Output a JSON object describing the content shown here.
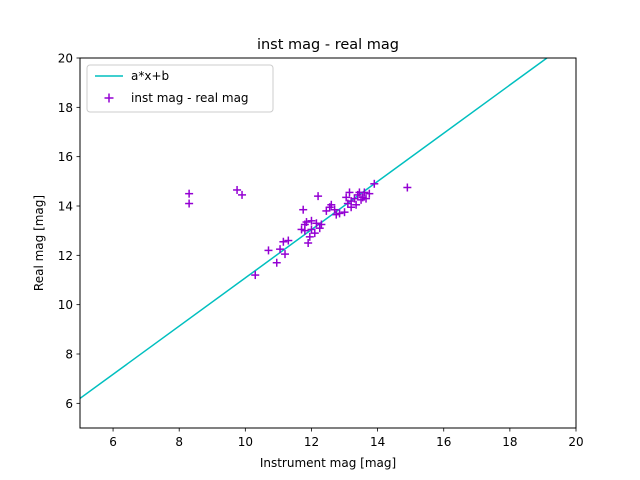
{
  "chart_data": {
    "type": "scatter",
    "title": "inst mag - real mag",
    "xlabel": "Instrument mag [mag]",
    "ylabel": "Real mag [mag]",
    "xlim": [
      5,
      20
    ],
    "ylim": [
      5,
      20
    ],
    "xticks": [
      6,
      8,
      10,
      12,
      14,
      16,
      18,
      20
    ],
    "yticks": [
      6,
      8,
      10,
      12,
      14,
      16,
      18,
      20
    ],
    "grid": false,
    "legend_placement": "upper-left",
    "series": [
      {
        "name": "a*x+b",
        "kind": "line",
        "color": "#00bfbf",
        "x": [
          5,
          19.12
        ],
        "y": [
          6.2,
          20
        ]
      },
      {
        "name": "inst mag - real mag",
        "kind": "scatter",
        "marker": "+",
        "color": "#9400d3",
        "x": [
          8.3,
          8.3,
          9.75,
          9.9,
          10.3,
          10.7,
          10.95,
          11.05,
          11.15,
          11.2,
          11.3,
          11.7,
          11.75,
          11.8,
          11.8,
          11.85,
          11.9,
          11.95,
          12.0,
          12.0,
          12.1,
          12.15,
          12.2,
          12.25,
          12.3,
          12.45,
          12.55,
          12.6,
          12.7,
          12.75,
          12.85,
          13.0,
          13.05,
          13.1,
          13.15,
          13.2,
          13.2,
          13.3,
          13.35,
          13.4,
          13.45,
          13.5,
          13.55,
          13.6,
          13.65,
          13.75,
          13.9,
          14.9
        ],
        "y": [
          14.5,
          14.1,
          14.65,
          14.45,
          11.2,
          12.2,
          11.7,
          12.25,
          12.55,
          12.05,
          12.6,
          13.05,
          13.85,
          13.25,
          13.0,
          13.35,
          12.5,
          12.75,
          13.4,
          13.05,
          12.9,
          13.3,
          14.4,
          13.1,
          13.25,
          13.8,
          13.95,
          14.05,
          13.85,
          13.65,
          13.7,
          13.75,
          14.35,
          14.1,
          14.55,
          14.2,
          13.95,
          14.3,
          14.05,
          14.45,
          14.55,
          14.25,
          14.35,
          14.55,
          14.3,
          14.5,
          14.9,
          14.75
        ]
      }
    ]
  }
}
